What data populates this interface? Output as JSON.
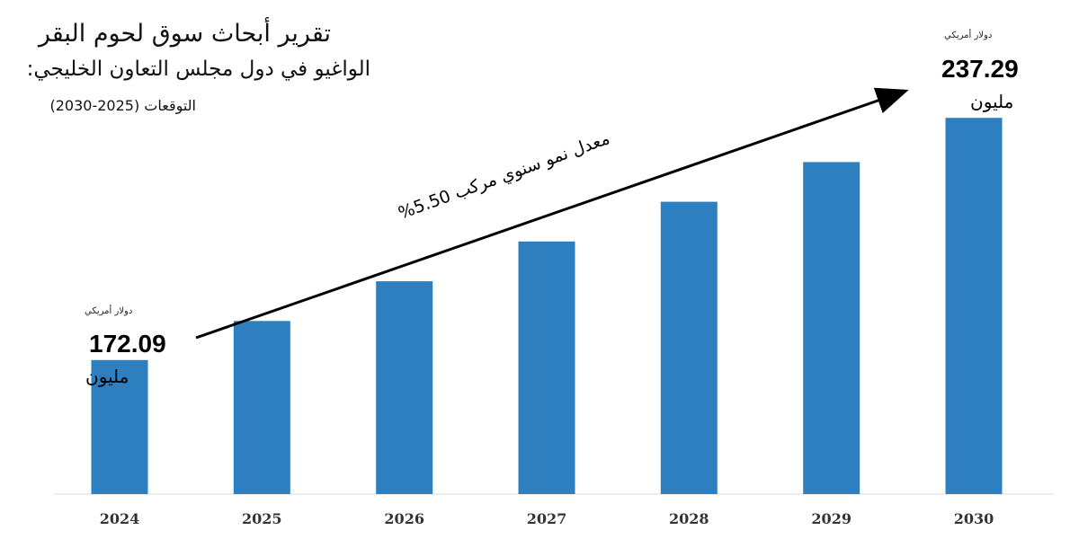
{
  "chart_data": {
    "type": "bar",
    "title_lines": [
      "تقرير أبحاث سوق لحوم البقر",
      "الواغيو في دول مجلس التعاون الخليجي:",
      "التوقعات (2025-2030)"
    ],
    "categories": [
      "2024",
      "2025",
      "2026",
      "2027",
      "2028",
      "2029",
      "2030"
    ],
    "values": [
      172.09,
      182.6,
      193.3,
      204.0,
      214.7,
      225.4,
      237.29
    ],
    "bar_color": "#2e7fc0",
    "ylim": [
      136,
      240
    ],
    "grid": false,
    "annotations": {
      "start": {
        "unit": "دولار أمريكي",
        "value": "172.09",
        "suffix": "مليون"
      },
      "end": {
        "unit": "دولار أمريكي",
        "value": "237.29",
        "suffix": "مليون"
      },
      "cagr": "معدل نمو سنوي مركب 5.50%"
    }
  }
}
